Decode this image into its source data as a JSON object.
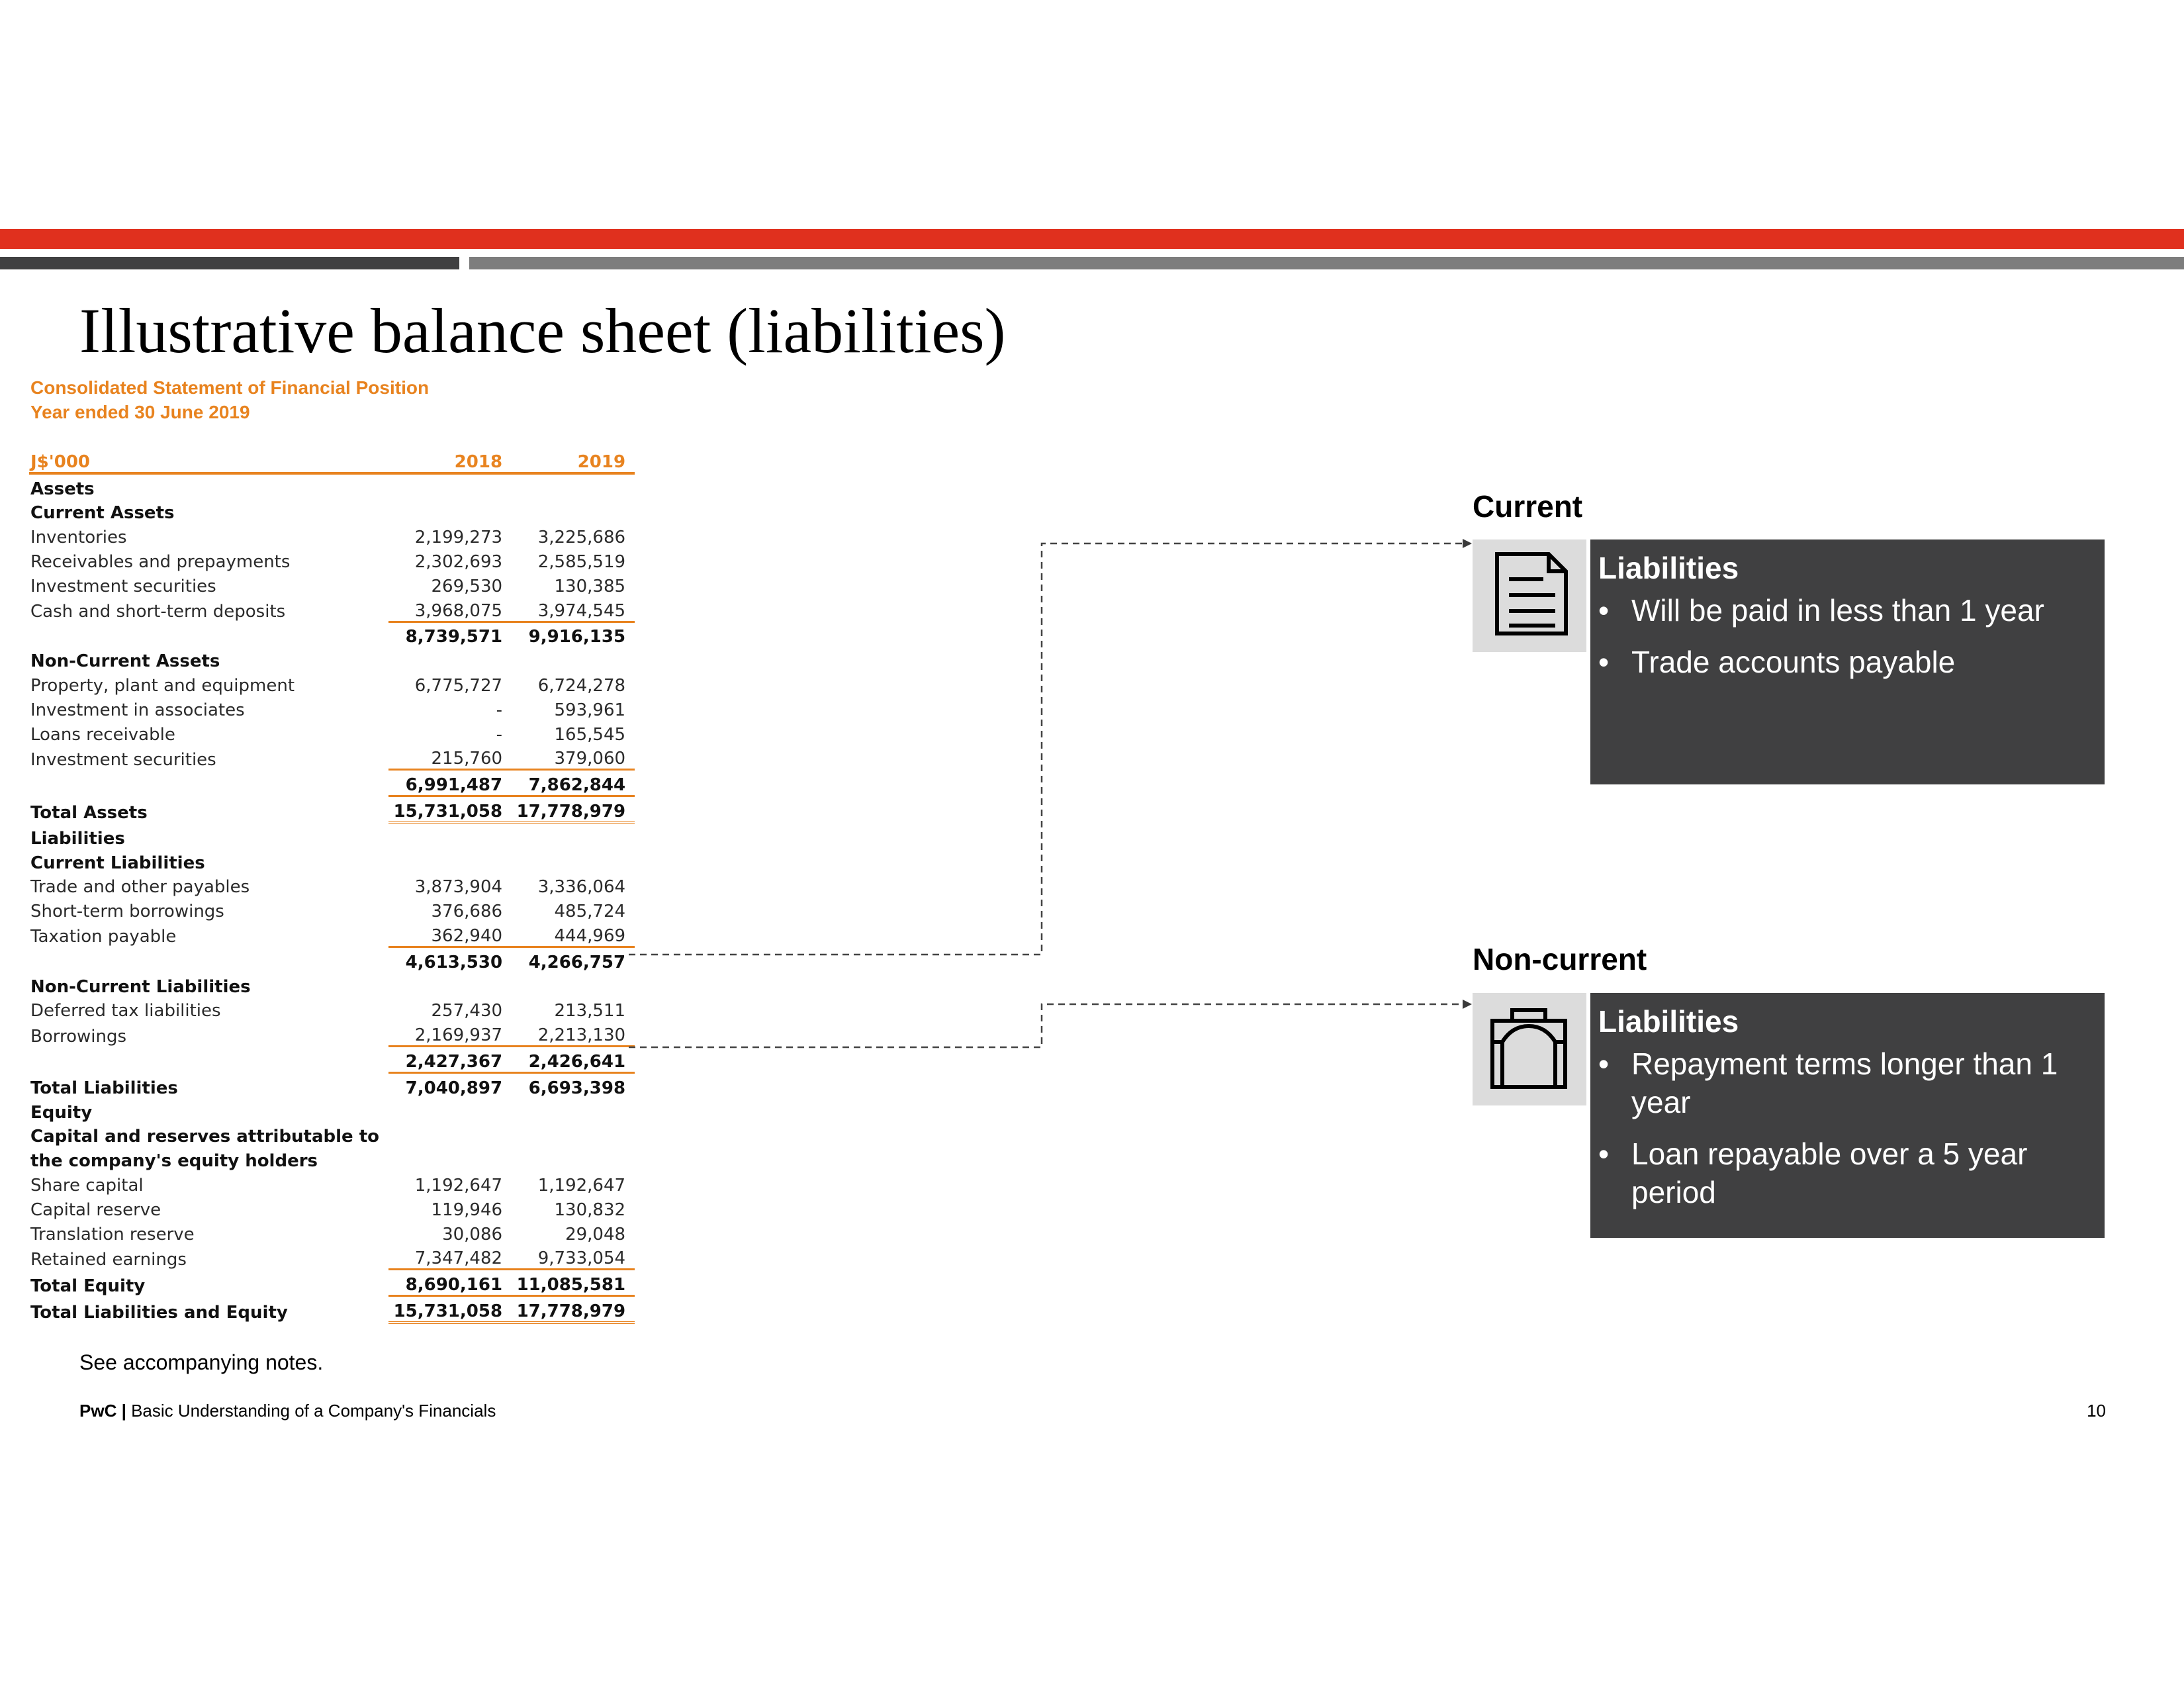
{
  "slide": {
    "title": "Illustrative balance sheet (liabilities)",
    "notes": "See accompanying notes.",
    "footer_brand": "PwC",
    "footer_separator": " | ",
    "footer_text": "Basic Understanding of a Company's Financials",
    "page_number": "10"
  },
  "statement": {
    "heading_line1": "Consolidated Statement of Financial Position",
    "heading_line2": "Year ended 30 June 2019",
    "columns": [
      "J$'000",
      "2018",
      "2019"
    ],
    "rows": [
      {
        "label": "Assets",
        "c2018": "",
        "c2019": "",
        "kind": "sec"
      },
      {
        "label": "Current Assets",
        "c2018": "",
        "c2019": "",
        "kind": "sec"
      },
      {
        "label": "Inventories",
        "c2018": "2,199,273",
        "c2019": "3,225,686",
        "kind": "item"
      },
      {
        "label": "Receivables and prepayments",
        "c2018": "2,302,693",
        "c2019": "2,585,519",
        "kind": "item"
      },
      {
        "label": "Investment securities",
        "c2018": "269,530",
        "c2019": "130,385",
        "kind": "item"
      },
      {
        "label": "Cash and short-term deposits",
        "c2018": "3,968,075",
        "c2019": "3,974,545",
        "kind": "item",
        "rule": "ul"
      },
      {
        "label": "",
        "c2018": "8,739,571",
        "c2019": "9,916,135",
        "kind": "total"
      },
      {
        "label": "Non-Current Assets",
        "c2018": "",
        "c2019": "",
        "kind": "sec"
      },
      {
        "label": "Property, plant and equipment",
        "c2018": "6,775,727",
        "c2019": "6,724,278",
        "kind": "item"
      },
      {
        "label": "Investment in associates",
        "c2018": "-",
        "c2019": "593,961",
        "kind": "item"
      },
      {
        "label": "Loans receivable",
        "c2018": "-",
        "c2019": "165,545",
        "kind": "item"
      },
      {
        "label": "Investment securities",
        "c2018": "215,760",
        "c2019": "379,060",
        "kind": "item",
        "rule": "ul"
      },
      {
        "label": "",
        "c2018": "6,991,487",
        "c2019": "7,862,844",
        "kind": "total",
        "rule": "ul"
      },
      {
        "label": "Total Assets",
        "c2018": "15,731,058",
        "c2019": "17,778,979",
        "kind": "total",
        "rule": "dul"
      },
      {
        "label": "Liabilities",
        "c2018": "",
        "c2019": "",
        "kind": "sec"
      },
      {
        "label": "Current Liabilities",
        "c2018": "",
        "c2019": "",
        "kind": "sec"
      },
      {
        "label": "Trade and other payables",
        "c2018": "3,873,904",
        "c2019": "3,336,064",
        "kind": "item"
      },
      {
        "label": "Short-term borrowings",
        "c2018": "376,686",
        "c2019": "485,724",
        "kind": "item"
      },
      {
        "label": "Taxation payable",
        "c2018": "362,940",
        "c2019": "444,969",
        "kind": "item",
        "rule": "ul"
      },
      {
        "label": "",
        "c2018": "4,613,530",
        "c2019": "4,266,757",
        "kind": "total"
      },
      {
        "label": "Non-Current Liabilities",
        "c2018": "",
        "c2019": "",
        "kind": "sec"
      },
      {
        "label": "Deferred tax liabilities",
        "c2018": "257,430",
        "c2019": "213,511",
        "kind": "item"
      },
      {
        "label": "Borrowings",
        "c2018": "2,169,937",
        "c2019": "2,213,130",
        "kind": "item",
        "rule": "ul"
      },
      {
        "label": "",
        "c2018": "2,427,367",
        "c2019": "2,426,641",
        "kind": "total",
        "rule": "ul"
      },
      {
        "label": "Total Liabilities",
        "c2018": "7,040,897",
        "c2019": "6,693,398",
        "kind": "total"
      },
      {
        "label": "Equity",
        "c2018": "",
        "c2019": "",
        "kind": "sec"
      },
      {
        "label": "Capital and reserves attributable to",
        "c2018": "",
        "c2019": "",
        "kind": "sec"
      },
      {
        "label": "the company's equity holders",
        "c2018": "",
        "c2019": "",
        "kind": "sec"
      },
      {
        "label": "Share capital",
        "c2018": "1,192,647",
        "c2019": "1,192,647",
        "kind": "item"
      },
      {
        "label": "Capital reserve",
        "c2018": "119,946",
        "c2019": "130,832",
        "kind": "item"
      },
      {
        "label": "Translation reserve",
        "c2018": "30,086",
        "c2019": "29,048",
        "kind": "item"
      },
      {
        "label": "Retained earnings",
        "c2018": "7,347,482",
        "c2019": "9,733,054",
        "kind": "item",
        "rule": "ul"
      },
      {
        "label": "Total Equity",
        "c2018": "8,690,161",
        "c2019": "11,085,581",
        "kind": "total",
        "rule": "ul"
      },
      {
        "label": "Total Liabilities and Equity",
        "c2018": "15,731,058",
        "c2019": "17,778,979",
        "kind": "total",
        "rule": "dul"
      }
    ]
  },
  "current": {
    "label": "Current",
    "icon": "document-icon",
    "card_title": "Liabilities",
    "bullets": [
      "Will be paid in less than 1 year",
      "Trade accounts payable"
    ]
  },
  "noncurrent": {
    "label": "Non-current",
    "icon": "briefcase-icon",
    "card_title": "Liabilities",
    "bullets": [
      "Repayment terms longer than 1 year",
      "Loan repayable over a 5 year period"
    ]
  },
  "colors": {
    "accent_red": "#e0301e",
    "statement_orange": "#e8831f",
    "card_dark": "#404041",
    "icon_bg": "#dcdcdc"
  }
}
